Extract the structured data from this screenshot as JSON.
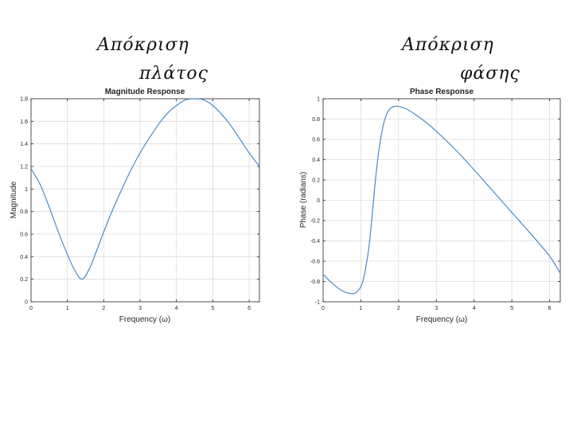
{
  "annotations": {
    "left_line1": "Απόκριση",
    "left_line2": "πλάτος",
    "right_line1": "Απόκριση",
    "right_line2": "φάσης"
  },
  "colors": {
    "line": "#4a8cc7"
  },
  "chart_data": [
    {
      "type": "line",
      "title": "Magnitude Response",
      "xlabel": "Frequency (ω)",
      "ylabel": "Magnitude",
      "xlim": [
        0,
        6.283
      ],
      "ylim": [
        0,
        1.8
      ],
      "xticks": [
        0,
        1,
        2,
        3,
        4,
        5,
        6
      ],
      "yticks": [
        0,
        0.2,
        0.4,
        0.6,
        0.8,
        1,
        1.2,
        1.4,
        1.6,
        1.8
      ],
      "grid": true,
      "series": [
        {
          "x": [
            0,
            0.25,
            0.5,
            0.75,
            1.0,
            1.2,
            1.4,
            1.6,
            1.8,
            2.0,
            2.25,
            2.5,
            2.75,
            3.0,
            3.25,
            3.5,
            3.75,
            4.0,
            4.25,
            4.5,
            4.75,
            5.0,
            5.25,
            5.5,
            5.75,
            6.0,
            6.283
          ],
          "y": [
            1.18,
            1.04,
            0.84,
            0.62,
            0.42,
            0.28,
            0.2,
            0.29,
            0.45,
            0.62,
            0.82,
            1.0,
            1.17,
            1.32,
            1.45,
            1.57,
            1.67,
            1.74,
            1.79,
            1.8,
            1.79,
            1.74,
            1.66,
            1.56,
            1.44,
            1.32,
            1.2
          ]
        }
      ]
    },
    {
      "type": "line",
      "title": "Phase Response",
      "xlabel": "Frequency (ω)",
      "ylabel": "Phase (radians)",
      "xlim": [
        0,
        6.283
      ],
      "ylim": [
        -1,
        1
      ],
      "xticks": [
        0,
        1,
        2,
        3,
        4,
        5,
        6
      ],
      "yticks": [
        -1,
        -0.8,
        -0.6,
        -0.4,
        -0.2,
        0,
        0.2,
        0.4,
        0.6,
        0.8,
        1
      ],
      "grid": true,
      "series": [
        {
          "x": [
            0,
            0.25,
            0.5,
            0.75,
            0.9,
            1.05,
            1.2,
            1.3,
            1.4,
            1.5,
            1.6,
            1.7,
            1.8,
            1.9,
            2.0,
            2.1,
            2.25,
            2.5,
            2.75,
            3.0,
            3.5,
            4.0,
            4.5,
            5.0,
            5.5,
            6.0,
            6.283
          ],
          "y": [
            -0.73,
            -0.82,
            -0.89,
            -0.92,
            -0.9,
            -0.8,
            -0.5,
            -0.15,
            0.25,
            0.55,
            0.75,
            0.86,
            0.91,
            0.925,
            0.925,
            0.915,
            0.89,
            0.83,
            0.76,
            0.68,
            0.5,
            0.3,
            0.09,
            -0.12,
            -0.33,
            -0.55,
            -0.72
          ]
        }
      ]
    }
  ]
}
